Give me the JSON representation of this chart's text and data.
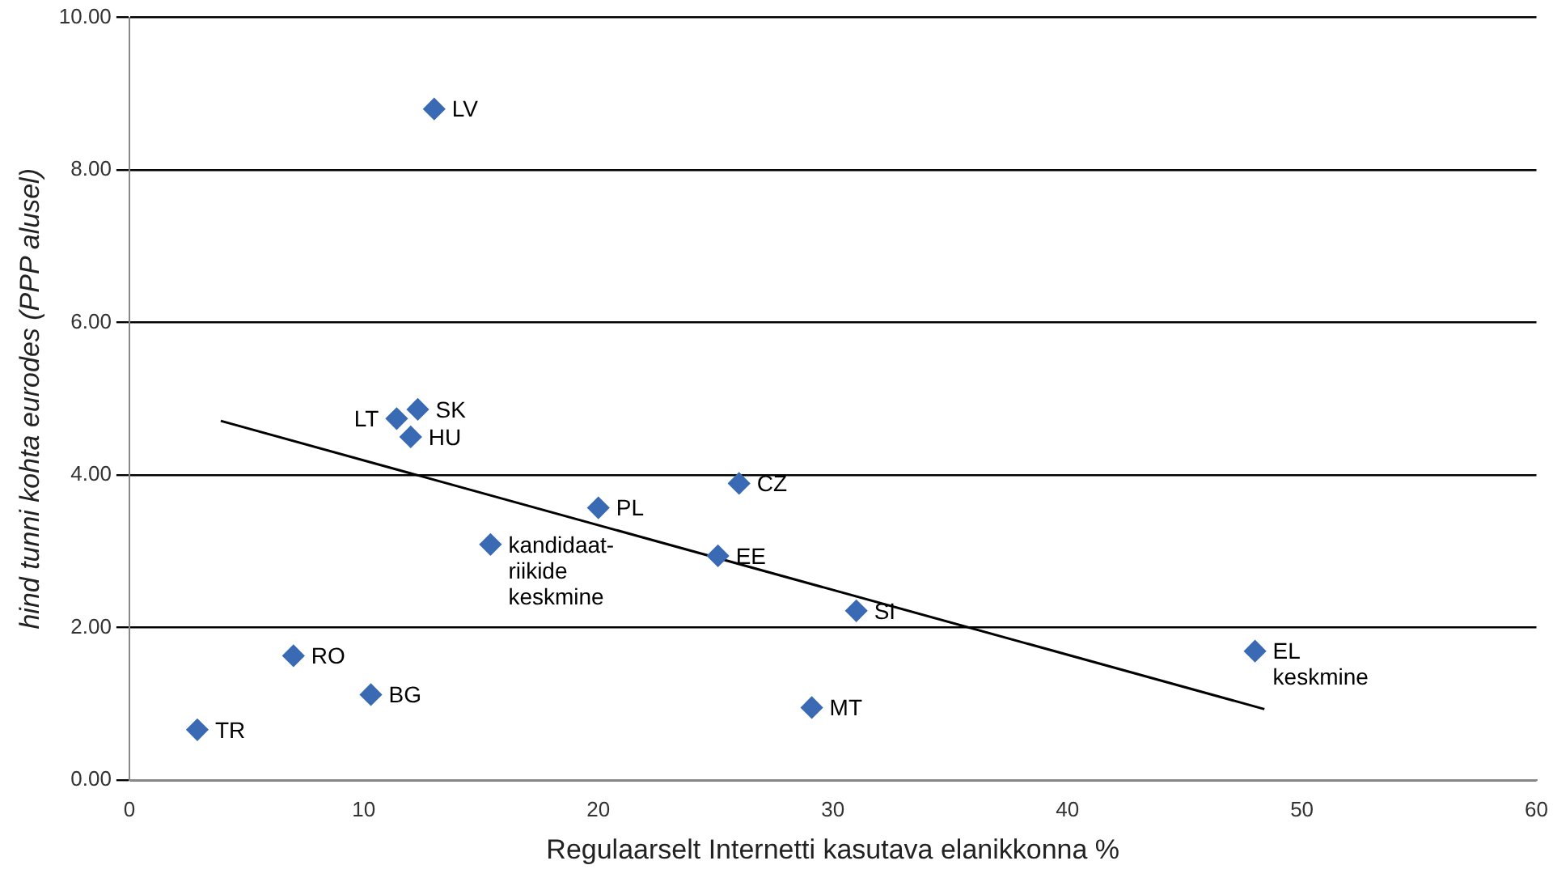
{
  "chart_data": {
    "type": "scatter",
    "xlabel": "Regulaarselt Internetti kasutava elanikkonna %",
    "ylabel": "hind tunni kohta eurodes (PPP alusel)",
    "xlim": [
      0,
      60
    ],
    "xticks": [
      0,
      10,
      20,
      30,
      40,
      50,
      60
    ],
    "ylim": [
      0,
      10
    ],
    "yticks": [
      {
        "value": 0,
        "label": "0.00"
      },
      {
        "value": 2,
        "label": "2.00"
      },
      {
        "value": 4,
        "label": "4.00"
      },
      {
        "value": 6,
        "label": "6.00"
      },
      {
        "value": 8,
        "label": "8.00"
      },
      {
        "value": 10,
        "label": "10.00"
      }
    ],
    "grid": "y",
    "legend": false,
    "series": [
      {
        "type": "scatter",
        "color": "#3a6ab4",
        "marker": "diamond",
        "x": [
          13.0,
          11.4,
          12.3,
          12.0,
          26.0,
          20.0,
          15.4,
          25.1,
          31.0,
          48.0,
          7.0,
          10.3,
          29.1,
          2.9
        ],
        "values": [
          8.8,
          4.74,
          4.86,
          4.5,
          3.89,
          3.57,
          3.09,
          2.94,
          2.22,
          1.69,
          1.63,
          1.12,
          0.95,
          0.66
        ]
      },
      {
        "type": "line",
        "color": "#000000",
        "marker": "none",
        "x": [
          3.9,
          48.4
        ],
        "values": [
          4.71,
          0.93
        ]
      }
    ],
    "annotations": [
      {
        "text": "LV",
        "x": 13.0,
        "y": 8.8
      },
      {
        "text": "LT",
        "x": 11.4,
        "y": 4.74
      },
      {
        "text": "SK",
        "x": 12.3,
        "y": 4.86
      },
      {
        "text": "HU",
        "x": 12.0,
        "y": 4.5
      },
      {
        "text": "CZ",
        "x": 26.0,
        "y": 3.89
      },
      {
        "text": "PL",
        "x": 20.0,
        "y": 3.57
      },
      {
        "text": "kandidaat-\nriikide\nkeskmine",
        "x": 15.4,
        "y": 3.09
      },
      {
        "text": "EE",
        "x": 25.1,
        "y": 2.94
      },
      {
        "text": "SI",
        "x": 31.0,
        "y": 2.22
      },
      {
        "text": "EL\nkeskmine",
        "x": 48.0,
        "y": 1.69
      },
      {
        "text": "RO",
        "x": 7.0,
        "y": 1.63
      },
      {
        "text": "BG",
        "x": 10.3,
        "y": 1.12
      },
      {
        "text": "MT",
        "x": 29.1,
        "y": 0.95
      },
      {
        "text": "TR",
        "x": 2.9,
        "y": 0.66
      }
    ]
  }
}
